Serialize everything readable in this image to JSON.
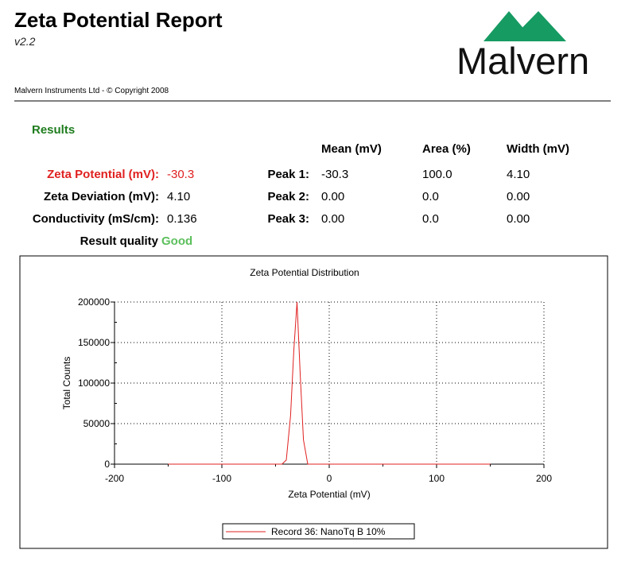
{
  "header": {
    "title": "Zeta Potential Report",
    "version": "v2.2",
    "copyright": "Malvern Instruments Ltd  - © Copyright 2008",
    "logo": "Malvern"
  },
  "results": {
    "heading": "Results",
    "columns": [
      "Mean (mV)",
      "Area (%)",
      "Width (mV)"
    ],
    "summary": [
      {
        "label": "Zeta Potential (mV):",
        "value": "-30.3"
      },
      {
        "label": "Zeta Deviation (mV):",
        "value": "4.10"
      },
      {
        "label": "Conductivity (mS/cm):",
        "value": "0.136"
      },
      {
        "label": "Result quality",
        "value": "Good"
      }
    ],
    "peaks": [
      {
        "label": "Peak 1:",
        "cells": [
          "-30.3",
          "100.0",
          "4.10"
        ]
      },
      {
        "label": "Peak 2:",
        "cells": [
          "0.00",
          "0.0",
          "0.00"
        ]
      },
      {
        "label": "Peak 3:",
        "cells": [
          "0.00",
          "0.0",
          "0.00"
        ]
      }
    ]
  },
  "chart_data": {
    "type": "line",
    "title": "Zeta Potential Distribution",
    "x_label": "Zeta Potential (mV)",
    "y_label": "Total Counts",
    "x": [
      -150,
      -50,
      -44,
      -40,
      -36,
      -33,
      -30,
      -27,
      -24,
      -20,
      150
    ],
    "series": [
      {
        "name": "Record 36: NanoTq B 10%",
        "color": "#e02020",
        "values": [
          0,
          0,
          0,
          5000,
          60000,
          140000,
          200000,
          110000,
          30000,
          0,
          0
        ]
      }
    ],
    "xlim": [
      -200,
      200
    ],
    "xticks": [
      -200,
      -100,
      0,
      100,
      200
    ],
    "xminorticks": [
      -150,
      -50,
      50,
      150
    ],
    "ylim": [
      0,
      200000
    ],
    "yticks": [
      0,
      50000,
      100000,
      150000,
      200000
    ],
    "yminorticks": [
      25000,
      75000,
      125000,
      175000
    ],
    "grid": true,
    "legend": "bottom"
  }
}
